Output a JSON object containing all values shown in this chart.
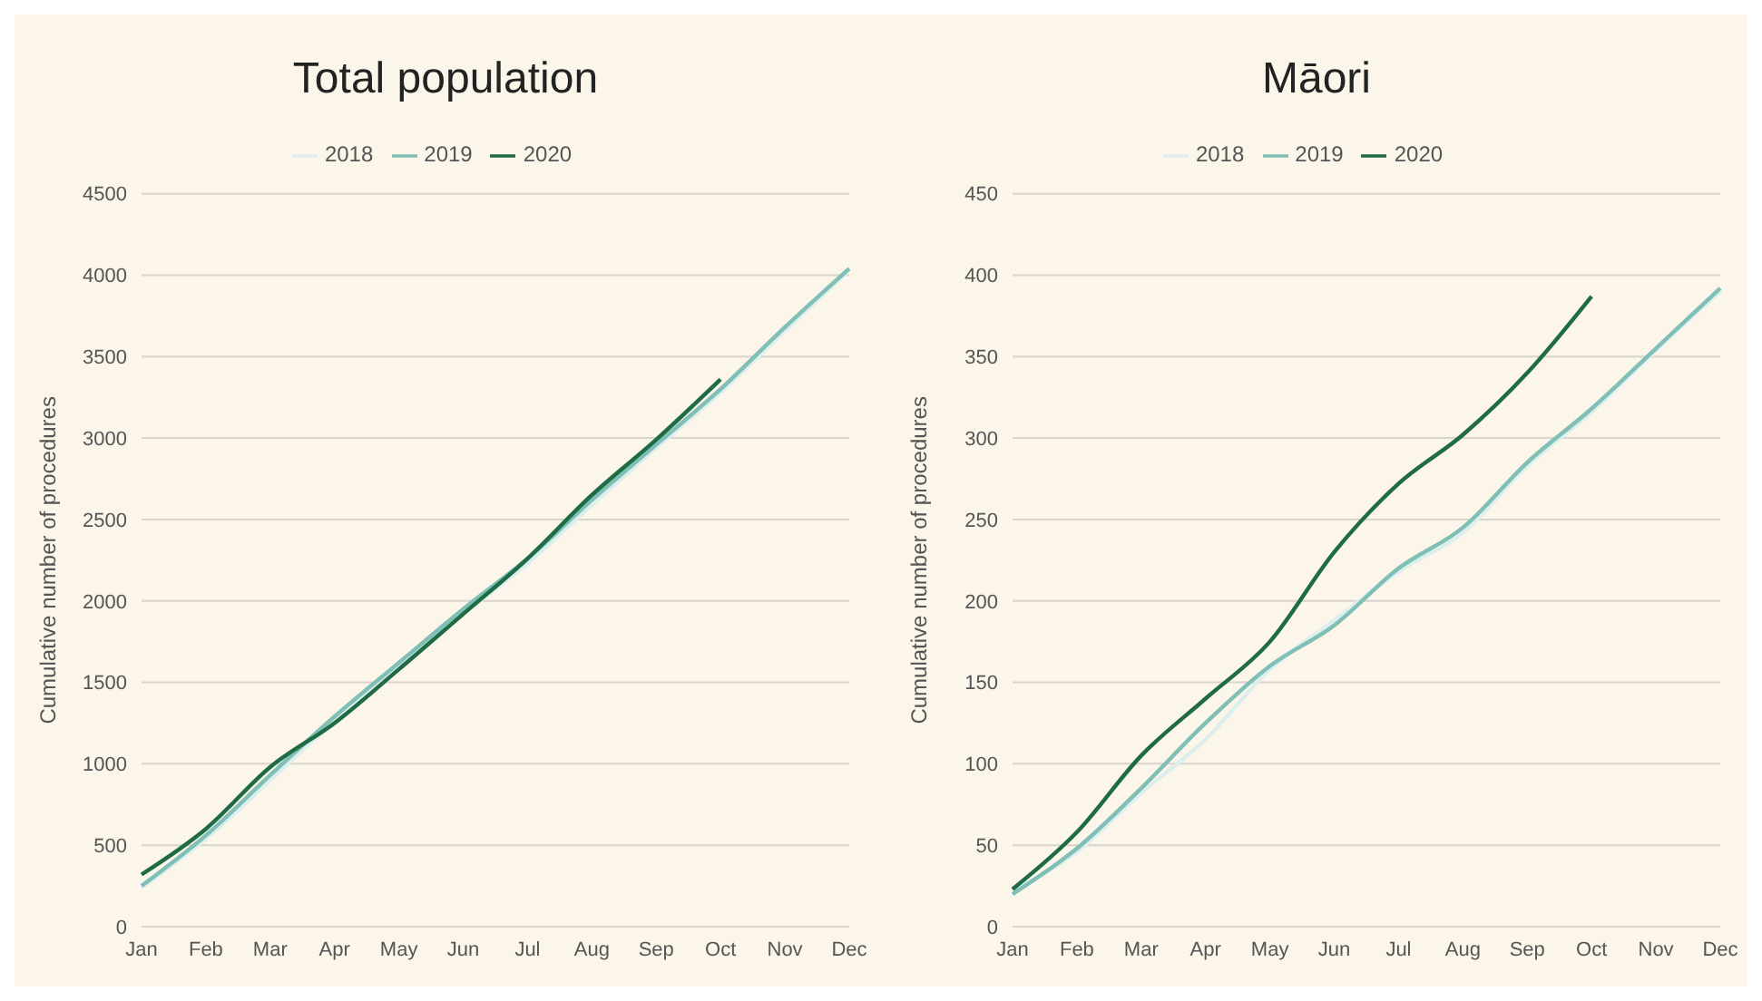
{
  "chart_data": [
    {
      "type": "line",
      "title": "Total population",
      "ylabel": "Cumulative number of procedures",
      "categories": [
        "Jan",
        "Feb",
        "Mar",
        "Apr",
        "May",
        "Jun",
        "Jul",
        "Aug",
        "Sep",
        "Oct",
        "Nov",
        "Dec"
      ],
      "series": [
        {
          "name": "2018",
          "color": "#dcefec",
          "values": [
            240,
            540,
            900,
            1260,
            1600,
            1920,
            2230,
            2590,
            2940,
            3280,
            3660,
            4030
          ]
        },
        {
          "name": "2019",
          "color": "#7fbfb5",
          "values": [
            250,
            560,
            930,
            1290,
            1620,
            1950,
            2260,
            2620,
            2960,
            3300,
            3680,
            4040
          ]
        },
        {
          "name": "2020",
          "color": "#1e6b45",
          "values": [
            320,
            600,
            980,
            1250,
            1580,
            1920,
            2260,
            2650,
            2990,
            3360,
            null,
            null
          ]
        }
      ],
      "ylim": [
        0,
        4500
      ],
      "yticks": [
        0,
        500,
        1000,
        1500,
        2000,
        2500,
        3000,
        3500,
        4000,
        4500
      ],
      "grid": "y",
      "legend": "top",
      "marker": "none"
    },
    {
      "type": "line",
      "title": "Māori",
      "ylabel": "Cumulative number of procedures",
      "categories": [
        "Jan",
        "Feb",
        "Mar",
        "Apr",
        "May",
        "Jun",
        "Jul",
        "Aug",
        "Sep",
        "Oct",
        "Nov",
        "Dec"
      ],
      "series": [
        {
          "name": "2018",
          "color": "#dcefec",
          "values": [
            22,
            46,
            82,
            115,
            158,
            188,
            218,
            242,
            283,
            316,
            354,
            390
          ]
        },
        {
          "name": "2019",
          "color": "#7fbfb5",
          "values": [
            20,
            48,
            85,
            125,
            160,
            185,
            220,
            245,
            285,
            318,
            355,
            392
          ]
        },
        {
          "name": "2020",
          "color": "#1e6b45",
          "values": [
            23,
            58,
            105,
            140,
            175,
            230,
            272,
            302,
            340,
            387,
            null,
            null
          ]
        }
      ],
      "ylim": [
        0,
        450
      ],
      "yticks": [
        0,
        50,
        100,
        150,
        200,
        250,
        300,
        350,
        400,
        450
      ],
      "grid": "y",
      "legend": "top",
      "marker": "none"
    }
  ]
}
